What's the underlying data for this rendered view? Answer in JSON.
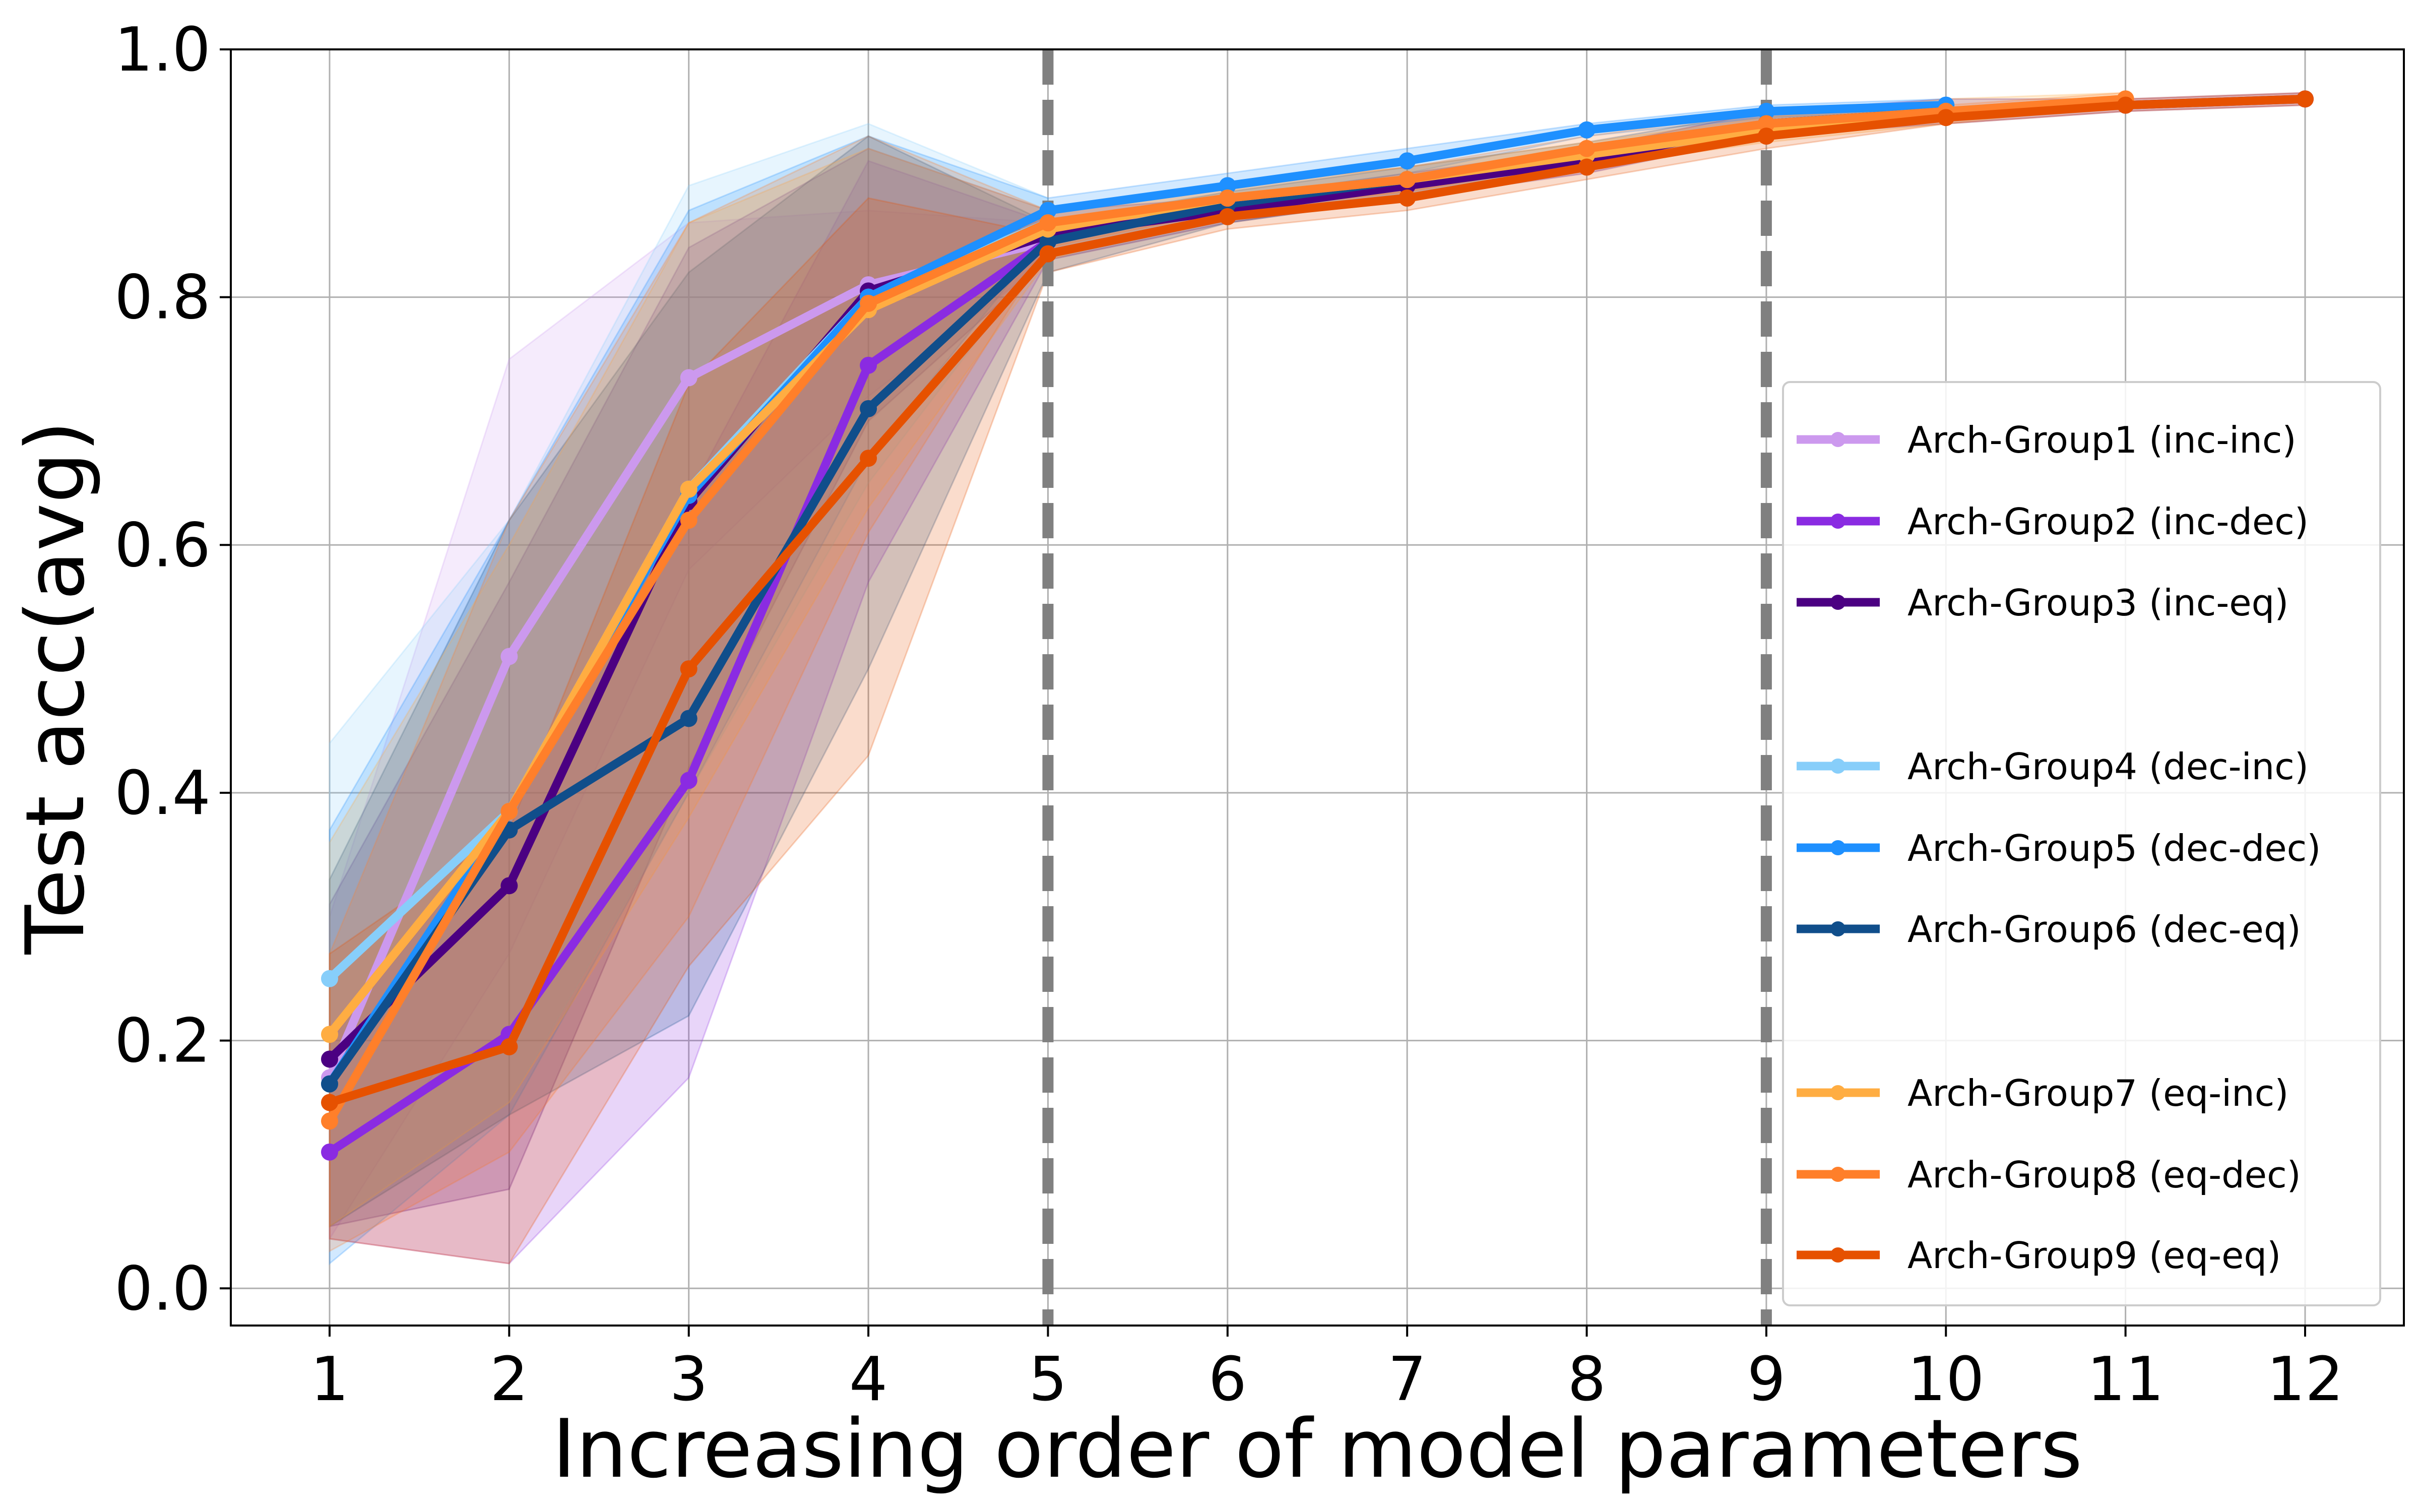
{
  "chart_data": {
    "type": "line",
    "xlabel": "Increasing order of model parameters",
    "ylabel": "Test acc(avg)",
    "xlim": [
      0.45,
      12.55
    ],
    "ylim": [
      -0.03,
      1.0
    ],
    "x_ticks": [
      1,
      2,
      3,
      4,
      5,
      6,
      7,
      8,
      9,
      10,
      11,
      12
    ],
    "y_ticks": [
      0.0,
      0.2,
      0.4,
      0.6,
      0.8,
      1.0
    ],
    "y_tick_labels": [
      "0.0",
      "0.2",
      "0.4",
      "0.6",
      "0.8",
      "1.0"
    ],
    "grid": true,
    "legend_position": "right",
    "vlines": [
      {
        "x": 5,
        "color": "#808080",
        "style": "dashed"
      },
      {
        "x": 9,
        "color": "#808080",
        "style": "dashed"
      }
    ],
    "series": [
      {
        "name": "Arch-Group1 (inc-inc)",
        "color": "#cc99ee",
        "x": [
          1,
          2,
          3,
          4,
          5
        ],
        "y": [
          0.17,
          0.51,
          0.735,
          0.81,
          0.845
        ],
        "lower": [
          0.04,
          0.27,
          0.58,
          0.72,
          0.83
        ],
        "upper": [
          0.3,
          0.75,
          0.86,
          0.87,
          0.86
        ]
      },
      {
        "name": "Arch-Group2 (inc-dec)",
        "color": "#8a2be2",
        "x": [
          1,
          2,
          3,
          4,
          5
        ],
        "y": [
          0.11,
          0.205,
          0.41,
          0.745,
          0.845
        ],
        "lower": [
          0.04,
          0.02,
          0.17,
          0.57,
          0.83
        ],
        "upper": [
          0.2,
          0.38,
          0.64,
          0.91,
          0.86
        ]
      },
      {
        "name": "Arch-Group3 (inc-eq)",
        "color": "#4b0082",
        "x": [
          1,
          2,
          3,
          4,
          5,
          6,
          7,
          8,
          9,
          10,
          11,
          12
        ],
        "y": [
          0.185,
          0.325,
          0.635,
          0.805,
          0.85,
          0.87,
          0.89,
          0.91,
          0.94,
          0.95,
          0.955,
          0.96
        ],
        "lower": [
          0.05,
          0.08,
          0.42,
          0.7,
          0.83,
          0.86,
          0.88,
          0.9,
          0.93,
          0.94,
          0.95,
          0.955
        ],
        "upper": [
          0.31,
          0.57,
          0.84,
          0.92,
          0.87,
          0.88,
          0.9,
          0.92,
          0.95,
          0.96,
          0.96,
          0.965
        ]
      },
      {
        "name": "Arch-Group4 (dec-inc)",
        "color": "#87cefa",
        "x": [
          1,
          2,
          3,
          4,
          5
        ],
        "y": [
          0.25,
          0.385,
          0.645,
          0.8,
          0.86
        ],
        "lower": [
          0.05,
          0.15,
          0.4,
          0.65,
          0.84
        ],
        "upper": [
          0.44,
          0.62,
          0.89,
          0.94,
          0.88
        ]
      },
      {
        "name": "Arch-Group5 (dec-dec)",
        "color": "#1e90ff",
        "x": [
          1,
          2,
          3,
          4,
          5,
          6,
          7,
          8,
          9,
          10
        ],
        "y": [
          0.165,
          0.385,
          0.64,
          0.8,
          0.87,
          0.89,
          0.91,
          0.935,
          0.95,
          0.955
        ],
        "lower": [
          0.02,
          0.14,
          0.4,
          0.67,
          0.85,
          0.88,
          0.9,
          0.93,
          0.945,
          0.95
        ],
        "upper": [
          0.37,
          0.62,
          0.87,
          0.93,
          0.88,
          0.9,
          0.92,
          0.94,
          0.955,
          0.96
        ]
      },
      {
        "name": "Arch-Group6 (dec-eq)",
        "color": "#104e8b",
        "x": [
          1,
          2,
          3,
          4,
          5,
          6,
          7,
          8,
          9,
          10
        ],
        "y": [
          0.165,
          0.37,
          0.46,
          0.71,
          0.845,
          0.875,
          0.895,
          0.915,
          0.94,
          0.95
        ],
        "lower": [
          0.05,
          0.14,
          0.22,
          0.5,
          0.82,
          0.86,
          0.88,
          0.905,
          0.93,
          0.945
        ],
        "upper": [
          0.33,
          0.62,
          0.82,
          0.93,
          0.86,
          0.885,
          0.905,
          0.925,
          0.95,
          0.955
        ]
      },
      {
        "name": "Arch-Group7 (eq-inc)",
        "color": "#ffad42",
        "x": [
          1,
          2,
          3,
          4,
          5,
          6,
          7,
          8,
          9,
          10,
          11
        ],
        "y": [
          0.205,
          0.385,
          0.645,
          0.79,
          0.855,
          0.88,
          0.895,
          0.915,
          0.935,
          0.95,
          0.96
        ],
        "lower": [
          0.05,
          0.15,
          0.38,
          0.63,
          0.83,
          0.87,
          0.88,
          0.905,
          0.925,
          0.94,
          0.955
        ],
        "upper": [
          0.36,
          0.6,
          0.86,
          0.92,
          0.87,
          0.89,
          0.905,
          0.925,
          0.945,
          0.96,
          0.965
        ]
      },
      {
        "name": "Arch-Group8 (eq-dec)",
        "color": "#ff7f2a",
        "x": [
          1,
          2,
          3,
          4,
          5,
          6,
          7,
          8,
          9,
          10,
          11
        ],
        "y": [
          0.135,
          0.385,
          0.62,
          0.795,
          0.86,
          0.88,
          0.895,
          0.92,
          0.94,
          0.95,
          0.96
        ],
        "lower": [
          0.03,
          0.11,
          0.3,
          0.61,
          0.84,
          0.87,
          0.885,
          0.91,
          0.93,
          0.945,
          0.955
        ],
        "upper": [
          0.27,
          0.62,
          0.86,
          0.93,
          0.87,
          0.89,
          0.905,
          0.93,
          0.95,
          0.955,
          0.965
        ]
      },
      {
        "name": "Arch-Group9 (eq-eq)",
        "color": "#e65100",
        "x": [
          1,
          2,
          3,
          4,
          5,
          6,
          7,
          8,
          9,
          10,
          11,
          12
        ],
        "y": [
          0.15,
          0.195,
          0.5,
          0.67,
          0.835,
          0.865,
          0.88,
          0.905,
          0.93,
          0.945,
          0.955,
          0.96
        ],
        "lower": [
          0.04,
          0.02,
          0.26,
          0.43,
          0.82,
          0.855,
          0.87,
          0.895,
          0.92,
          0.94,
          0.95,
          0.955
        ],
        "upper": [
          0.27,
          0.37,
          0.73,
          0.88,
          0.85,
          0.875,
          0.89,
          0.915,
          0.94,
          0.95,
          0.96,
          0.965
        ]
      }
    ]
  }
}
